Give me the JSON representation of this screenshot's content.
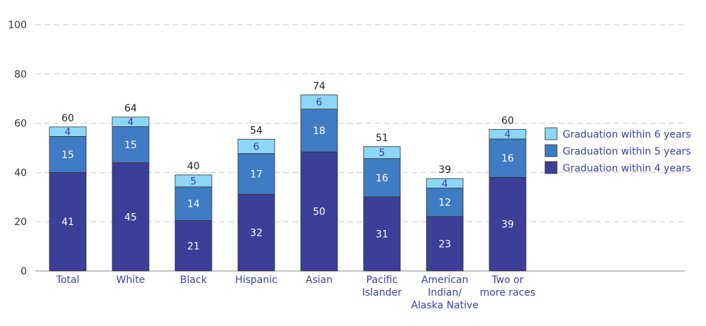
{
  "chart_data": {
    "type": "bar",
    "stacked": true,
    "categories": [
      [
        "Total"
      ],
      [
        "White"
      ],
      [
        "Black"
      ],
      [
        "Hispanic"
      ],
      [
        "Asian"
      ],
      [
        "Pacific",
        "Islander"
      ],
      [
        "American",
        "Indian/",
        "Alaska Native"
      ],
      [
        "Two or",
        "more races"
      ]
    ],
    "series": [
      {
        "name": "Graduation within 4 years",
        "color": "#3b3f98",
        "label_color": "#ffffff",
        "values": [
          41,
          45,
          21,
          32,
          50,
          31,
          23,
          39
        ]
      },
      {
        "name": "Graduation within 5 years",
        "color": "#3f7cc4",
        "label_color": "#ffffff",
        "values": [
          15,
          15,
          14,
          17,
          18,
          16,
          12,
          16
        ]
      },
      {
        "name": "Graduation within 6 years",
        "color": "#8ed6f5",
        "label_color": "#3b3fa8",
        "values": [
          4,
          4,
          5,
          6,
          6,
          5,
          4,
          4
        ]
      }
    ],
    "bar_heights": [
      58.5,
      62.5,
      39,
      53.5,
      71.5,
      50.5,
      37.5,
      57.5
    ],
    "totals": [
      60,
      64,
      40,
      54,
      74,
      51,
      39,
      60
    ],
    "ylim": [
      0,
      100
    ],
    "yticks": [
      0,
      20,
      40,
      60,
      80,
      100
    ],
    "grid": true,
    "legend_position": "right",
    "legend_order": [
      2,
      1,
      0
    ]
  }
}
